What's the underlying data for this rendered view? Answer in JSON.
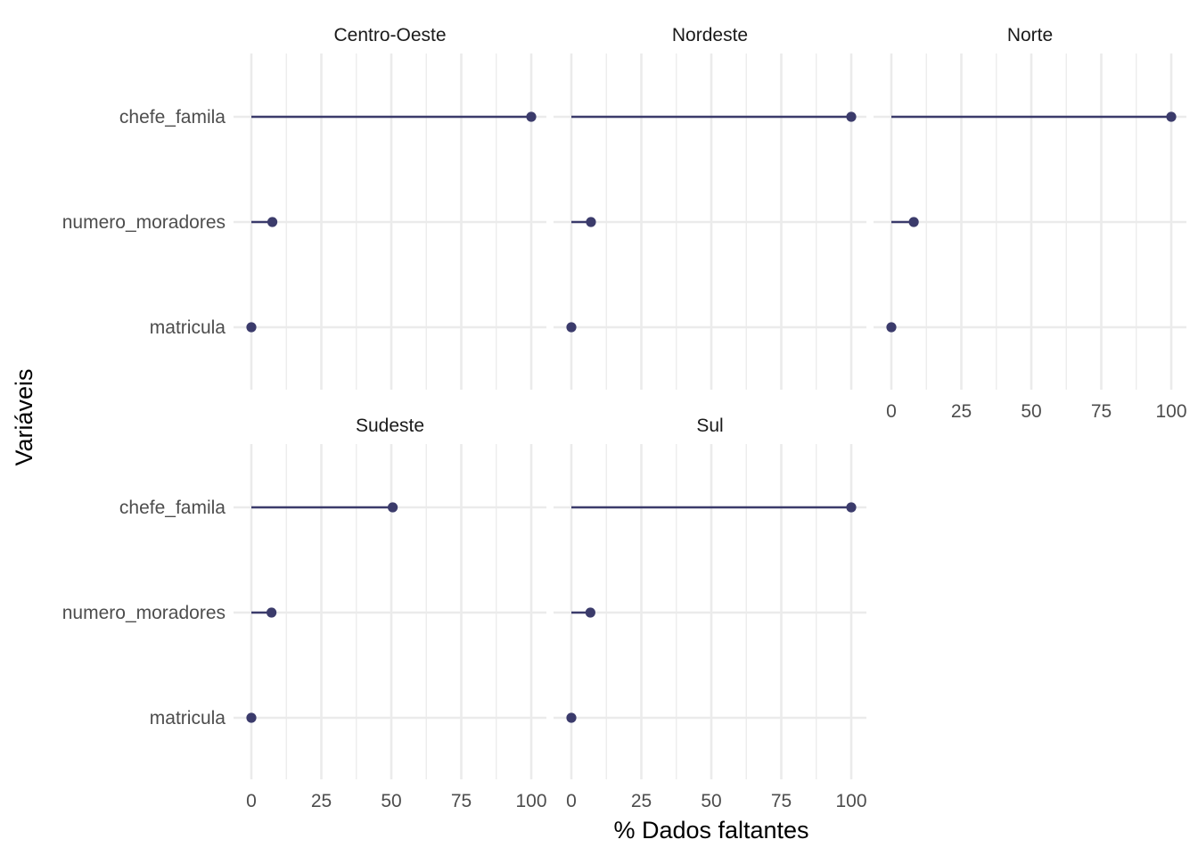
{
  "chart_data": {
    "type": "lollipop",
    "xlabel": "% Dados faltantes",
    "ylabel": "Variáveis",
    "xlim": [
      0,
      100
    ],
    "xticks": [
      0,
      25,
      50,
      75,
      100
    ],
    "categories": [
      "chefe_famila",
      "numero_moradores",
      "matricula"
    ],
    "colors": {
      "line": "#3b3b6b",
      "point": "#3b3b6b",
      "grid": "#ebebeb"
    },
    "grid": true,
    "legend": "none",
    "facets": [
      {
        "name": "Centro-Oeste",
        "values": [
          100,
          7.5,
          0
        ]
      },
      {
        "name": "Nordeste",
        "values": [
          100,
          7,
          0
        ]
      },
      {
        "name": "Norte",
        "values": [
          100,
          8,
          0
        ]
      },
      {
        "name": "Sudeste",
        "values": [
          50.5,
          7.2,
          0
        ]
      },
      {
        "name": "Sul",
        "values": [
          100,
          6.8,
          0
        ]
      }
    ]
  }
}
